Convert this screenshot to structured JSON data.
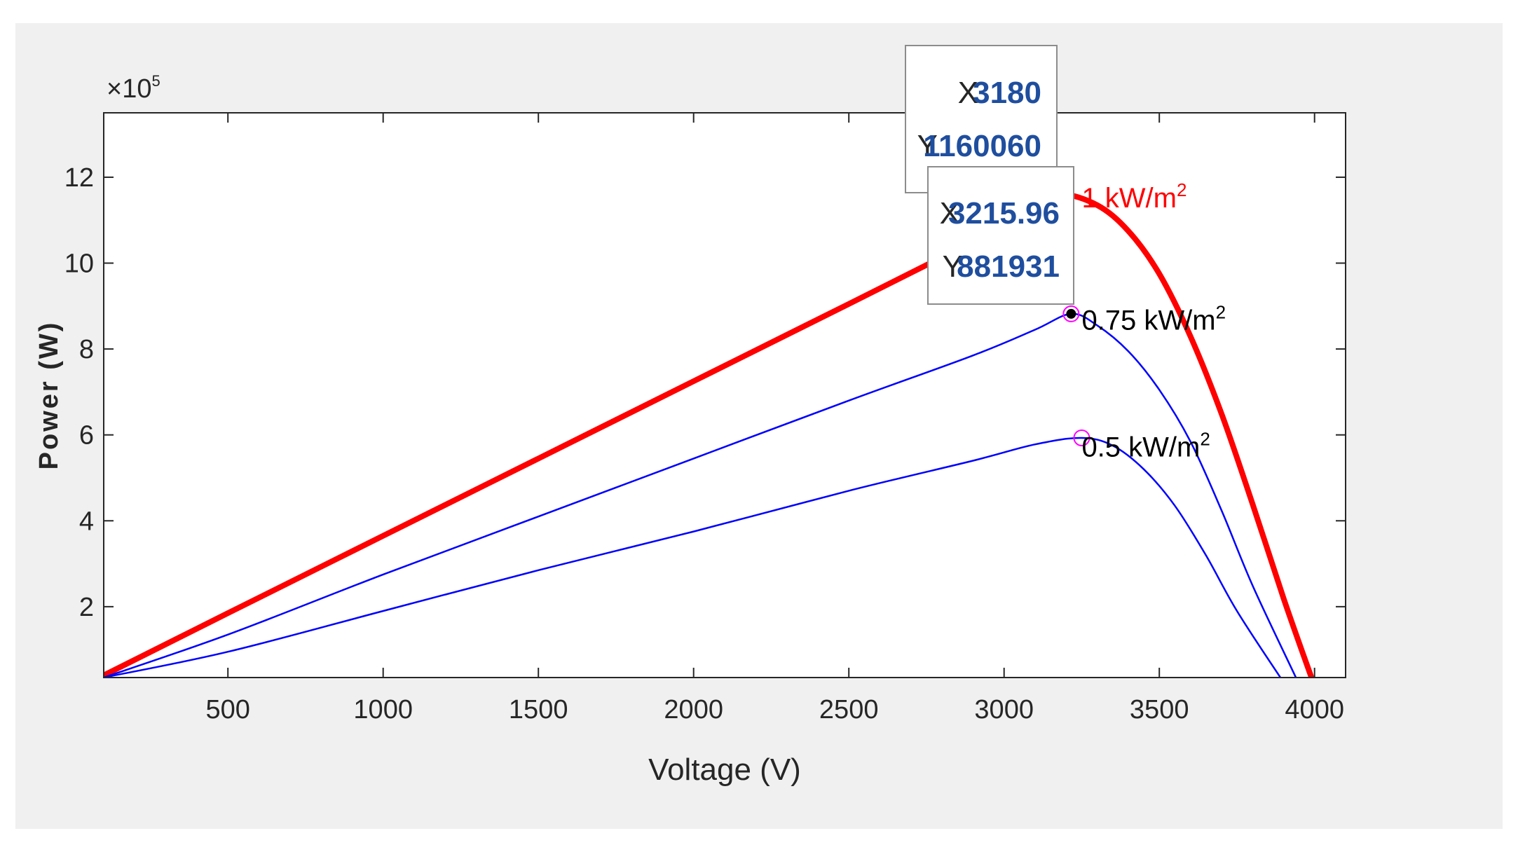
{
  "chart_data": {
    "type": "line",
    "title": "",
    "xlabel": "Voltage (V)",
    "ylabel": "Power (W)",
    "y_exponent_label": "×10",
    "y_exponent_power": "5",
    "xlim": [
      100,
      4100
    ],
    "ylim": [
      0.35,
      13.5
    ],
    "x_ticks": [
      500,
      1000,
      1500,
      2000,
      2500,
      3000,
      3500,
      4000
    ],
    "x_tick_labels": [
      "500",
      "1000",
      "1500",
      "2000",
      "2500",
      "3000",
      "3500",
      "4000"
    ],
    "y_ticks": [
      2,
      4,
      6,
      8,
      10,
      12
    ],
    "y_tick_labels": [
      "2",
      "4",
      "6",
      "8",
      "10",
      "12"
    ],
    "grid": false,
    "series": [
      {
        "name": "1  kW/m",
        "color": "#ff0000",
        "x": [
          100,
          500,
          1000,
          1500,
          2000,
          2500,
          2900,
          3100,
          3180,
          3300,
          3400,
          3500,
          3600,
          3700,
          3800,
          3900,
          3990
        ],
        "y": [
          0.4,
          1.85,
          3.65,
          5.45,
          7.25,
          9.05,
          10.5,
          11.25,
          11.6006,
          11.35,
          10.75,
          9.75,
          8.3,
          6.5,
          4.4,
          2.2,
          0.35
        ]
      },
      {
        "name": "0.75  kW/m",
        "color": "#0000ff",
        "x": [
          100,
          500,
          1000,
          1500,
          2000,
          2500,
          2900,
          3100,
          3215.96,
          3300,
          3400,
          3500,
          3600,
          3700,
          3800,
          3940
        ],
        "y": [
          0.35,
          1.35,
          2.75,
          4.1,
          5.45,
          6.8,
          7.85,
          8.45,
          8.81931,
          8.55,
          7.95,
          7.05,
          5.85,
          4.25,
          2.5,
          0.35
        ]
      },
      {
        "name": "0.5  kW/m",
        "color": "#0000ff",
        "x": [
          100,
          500,
          1000,
          1500,
          2000,
          2500,
          2900,
          3100,
          3250,
          3350,
          3450,
          3550,
          3650,
          3750,
          3890
        ],
        "y": [
          0.35,
          0.95,
          1.9,
          2.85,
          3.75,
          4.7,
          5.4,
          5.78,
          5.93,
          5.75,
          5.2,
          4.35,
          3.2,
          1.9,
          0.35
        ]
      }
    ],
    "curve_labels": [
      {
        "text": "1  kW/m",
        "sup": "2",
        "color": "#ff0000",
        "x": 3250,
        "y": 11.3
      },
      {
        "text": "0.75  kW/m",
        "sup": "2",
        "color": "#000000",
        "x": 3250,
        "y": 8.45
      },
      {
        "text": "0.5  kW/m",
        "sup": "2",
        "color": "#000000",
        "x": 3250,
        "y": 5.5
      }
    ],
    "markers": [
      {
        "x": 3215.96,
        "y": 8.81931,
        "style": "open-circle",
        "color": "#ff00ff"
      },
      {
        "x": 3215.96,
        "y": 8.81931,
        "style": "filled-dot",
        "color": "#000000"
      },
      {
        "x": 3250,
        "y": 5.93,
        "style": "open-circle",
        "color": "#ff00ff"
      }
    ],
    "datatips": [
      {
        "x_label": "X",
        "x_value": "3180",
        "y_label": "Y",
        "y_value": "1160060"
      },
      {
        "x_label": "X",
        "x_value": "3215.96",
        "y_label": "Y",
        "y_value": "881931"
      }
    ],
    "colors": {
      "axes": "#262626",
      "tip_value": "#1f4e9e",
      "figure_bg": "#f0f0f0"
    }
  }
}
